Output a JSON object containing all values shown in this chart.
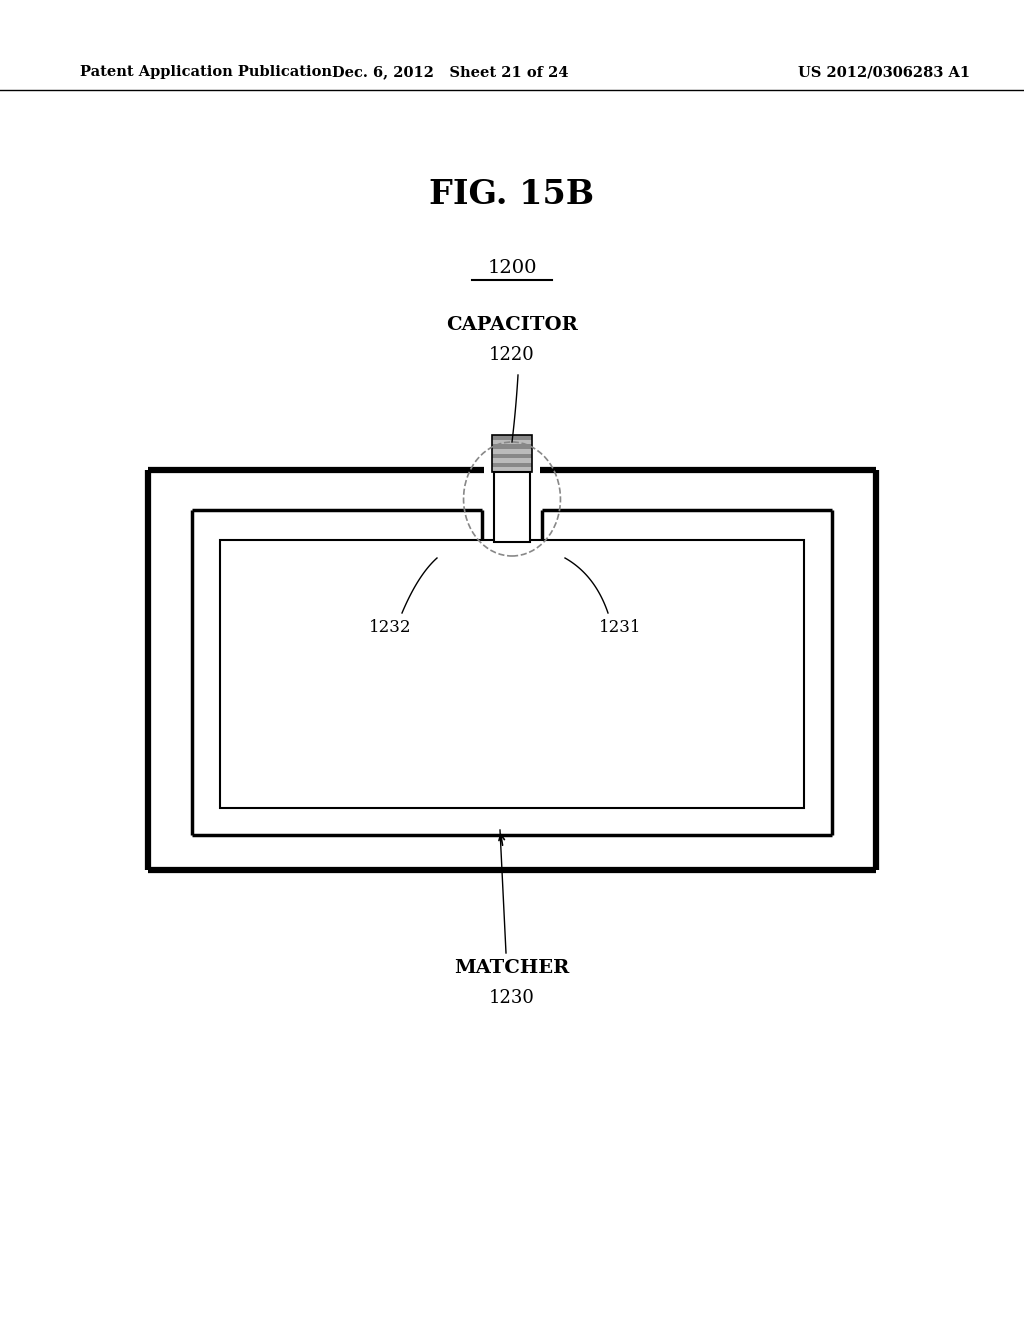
{
  "bg_color": "#ffffff",
  "header_left": "Patent Application Publication",
  "header_mid": "Dec. 6, 2012   Sheet 21 of 24",
  "header_right": "US 2012/0306283 A1",
  "fig_title": "FIG. 15B",
  "label_1200": "1200",
  "label_capacitor": "CAPACITOR",
  "label_1220": "1220",
  "label_matcher": "MATCHER",
  "label_1230": "1230",
  "label_1231": "1231",
  "label_1232": "1232"
}
